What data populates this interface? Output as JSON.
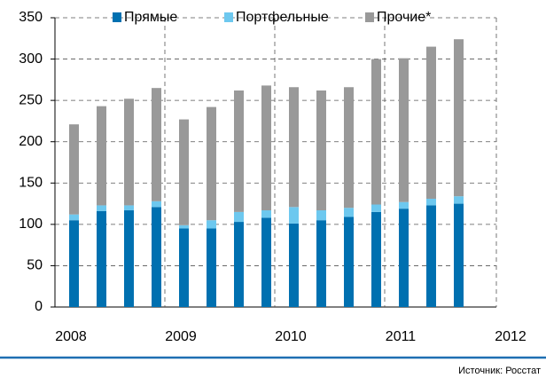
{
  "chart_data": {
    "type": "stacked_bar",
    "categories": [
      null,
      null,
      null,
      null,
      null,
      null,
      null,
      null,
      null,
      null,
      null,
      null,
      null,
      null,
      null
    ],
    "year_labels": [
      "2008",
      "2009",
      "2010",
      "2011",
      "2012"
    ],
    "series": [
      {
        "name": "Прямые",
        "color": "#0070b0",
        "values": [
          105,
          116,
          117,
          121,
          95,
          95,
          103,
          108,
          101,
          105,
          109,
          115,
          119,
          123,
          125
        ]
      },
      {
        "name": "Портфельные",
        "color": "#6dc8ef",
        "values": [
          7,
          7,
          6,
          7,
          4,
          10,
          12,
          9,
          20,
          12,
          11,
          9,
          8,
          8,
          9
        ]
      },
      {
        "name": "Прочие*",
        "color": "#999999",
        "values": [
          109,
          120,
          129,
          137,
          128,
          137,
          147,
          151,
          145,
          145,
          146,
          176,
          174,
          184,
          190
        ]
      }
    ],
    "ylim": [
      0,
      350
    ],
    "yticks": [
      0,
      50,
      100,
      150,
      200,
      250,
      300,
      350
    ],
    "grid": true,
    "source": "Источник: Росстат"
  }
}
